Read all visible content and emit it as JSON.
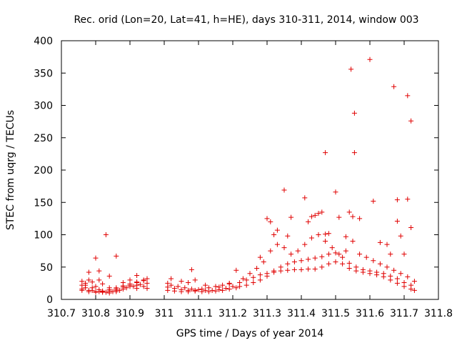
{
  "chart_data": {
    "type": "scatter",
    "title": "Rec. orid (Lon=20, Lat=41, h=HE), days 310-311, 2014, window 003",
    "xlabel": "GPS time / Days of year 2014",
    "ylabel": "STEC from uqrg / TECUs",
    "xlim": [
      310.7,
      311.8
    ],
    "ylim": [
      0,
      400
    ],
    "xticks": [
      "310.7",
      "310.8",
      "310.9",
      "311",
      "311.1",
      "311.2",
      "311.3",
      "311.4",
      "311.5",
      "311.6",
      "311.7",
      "311.8"
    ],
    "yticks": [
      "0",
      "50",
      "100",
      "150",
      "200",
      "250",
      "300",
      "350",
      "400"
    ],
    "marker": "+",
    "color": "#e00000",
    "series": [
      {
        "name": "STEC",
        "points": [
          [
            310.76,
            28
          ],
          [
            310.77,
            22
          ],
          [
            310.79,
            18
          ],
          [
            310.81,
            15
          ],
          [
            310.82,
            12
          ],
          [
            310.84,
            10
          ],
          [
            310.86,
            12
          ],
          [
            310.88,
            16
          ],
          [
            310.9,
            20
          ],
          [
            310.92,
            22
          ],
          [
            310.94,
            20
          ],
          [
            310.95,
            17
          ],
          [
            310.76,
            22
          ],
          [
            310.77,
            18
          ],
          [
            310.79,
            14
          ],
          [
            310.81,
            12
          ],
          [
            310.83,
            11
          ],
          [
            310.85,
            12
          ],
          [
            310.87,
            14
          ],
          [
            310.89,
            18
          ],
          [
            310.91,
            20
          ],
          [
            310.93,
            23
          ],
          [
            310.95,
            25
          ],
          [
            310.76,
            16
          ],
          [
            310.78,
            14
          ],
          [
            310.8,
            12
          ],
          [
            310.82,
            11
          ],
          [
            310.84,
            13
          ],
          [
            310.86,
            16
          ],
          [
            310.88,
            19
          ],
          [
            310.9,
            22
          ],
          [
            310.92,
            26
          ],
          [
            310.94,
            30
          ],
          [
            310.95,
            32
          ],
          [
            310.76,
            14
          ],
          [
            310.78,
            12
          ],
          [
            310.8,
            11
          ],
          [
            310.82,
            13
          ],
          [
            310.84,
            15
          ],
          [
            310.86,
            18
          ],
          [
            310.88,
            21
          ],
          [
            310.9,
            24
          ],
          [
            310.92,
            27
          ],
          [
            310.94,
            29
          ],
          [
            310.77,
            25
          ],
          [
            310.78,
            30
          ],
          [
            310.79,
            27
          ],
          [
            310.8,
            20
          ],
          [
            310.81,
            30
          ],
          [
            310.82,
            24
          ],
          [
            310.84,
            18
          ],
          [
            310.86,
            14
          ],
          [
            310.88,
            26
          ],
          [
            310.9,
            30
          ],
          [
            310.92,
            17
          ],
          [
            310.78,
            42
          ],
          [
            310.8,
            64
          ],
          [
            310.81,
            44
          ],
          [
            310.83,
            100
          ],
          [
            310.84,
            36
          ],
          [
            310.86,
            67
          ],
          [
            310.92,
            37
          ],
          [
            311.01,
            25
          ],
          [
            311.02,
            22
          ],
          [
            311.04,
            20
          ],
          [
            311.06,
            18
          ],
          [
            311.08,
            16
          ],
          [
            311.1,
            15
          ],
          [
            311.12,
            14
          ],
          [
            311.14,
            14
          ],
          [
            311.16,
            15
          ],
          [
            311.18,
            17
          ],
          [
            311.2,
            20
          ],
          [
            311.01,
            19
          ],
          [
            311.03,
            17
          ],
          [
            311.05,
            15
          ],
          [
            311.07,
            14
          ],
          [
            311.09,
            13
          ],
          [
            311.11,
            12
          ],
          [
            311.13,
            12
          ],
          [
            311.15,
            13
          ],
          [
            311.17,
            14
          ],
          [
            311.19,
            16
          ],
          [
            311.21,
            18
          ],
          [
            311.01,
            14
          ],
          [
            311.03,
            13
          ],
          [
            311.05,
            12
          ],
          [
            311.07,
            12
          ],
          [
            311.09,
            14
          ],
          [
            311.11,
            16
          ],
          [
            311.13,
            18
          ],
          [
            311.15,
            20
          ],
          [
            311.17,
            22
          ],
          [
            311.19,
            24
          ],
          [
            311.02,
            32
          ],
          [
            311.05,
            28
          ],
          [
            311.07,
            26
          ],
          [
            311.09,
            30
          ],
          [
            311.12,
            22
          ],
          [
            311.16,
            19
          ],
          [
            311.19,
            25
          ],
          [
            311.08,
            46
          ],
          [
            311.21,
            45
          ],
          [
            311.22,
            26
          ],
          [
            311.24,
            30
          ],
          [
            311.26,
            34
          ],
          [
            311.28,
            38
          ],
          [
            311.3,
            40
          ],
          [
            311.32,
            42
          ],
          [
            311.34,
            44
          ],
          [
            311.36,
            45
          ],
          [
            311.38,
            46
          ],
          [
            311.4,
            46
          ],
          [
            311.42,
            47
          ],
          [
            311.44,
            47
          ],
          [
            311.46,
            50
          ],
          [
            311.48,
            55
          ],
          [
            311.5,
            58
          ],
          [
            311.52,
            55
          ],
          [
            311.54,
            48
          ],
          [
            311.56,
            44
          ],
          [
            311.58,
            42
          ],
          [
            311.6,
            40
          ],
          [
            311.62,
            38
          ],
          [
            311.64,
            35
          ],
          [
            311.66,
            30
          ],
          [
            311.68,
            25
          ],
          [
            311.7,
            20
          ],
          [
            311.72,
            16
          ],
          [
            311.73,
            14
          ],
          [
            311.22,
            20
          ],
          [
            311.24,
            22
          ],
          [
            311.26,
            26
          ],
          [
            311.28,
            30
          ],
          [
            311.3,
            36
          ],
          [
            311.32,
            44
          ],
          [
            311.34,
            50
          ],
          [
            311.36,
            55
          ],
          [
            311.38,
            58
          ],
          [
            311.4,
            60
          ],
          [
            311.42,
            62
          ],
          [
            311.44,
            64
          ],
          [
            311.46,
            66
          ],
          [
            311.48,
            70
          ],
          [
            311.5,
            72
          ],
          [
            311.52,
            65
          ],
          [
            311.54,
            56
          ],
          [
            311.56,
            50
          ],
          [
            311.58,
            46
          ],
          [
            311.6,
            44
          ],
          [
            311.62,
            42
          ],
          [
            311.64,
            40
          ],
          [
            311.66,
            36
          ],
          [
            311.68,
            32
          ],
          [
            311.7,
            26
          ],
          [
            311.72,
            22
          ],
          [
            311.23,
            32
          ],
          [
            311.25,
            40
          ],
          [
            311.27,
            48
          ],
          [
            311.29,
            58
          ],
          [
            311.31,
            75
          ],
          [
            311.33,
            85
          ],
          [
            311.35,
            80
          ],
          [
            311.37,
            70
          ],
          [
            311.39,
            75
          ],
          [
            311.41,
            85
          ],
          [
            311.43,
            95
          ],
          [
            311.45,
            100
          ],
          [
            311.47,
            90
          ],
          [
            311.49,
            80
          ],
          [
            311.51,
            70
          ],
          [
            311.53,
            75
          ],
          [
            311.55,
            90
          ],
          [
            311.57,
            70
          ],
          [
            311.59,
            65
          ],
          [
            311.61,
            60
          ],
          [
            311.63,
            55
          ],
          [
            311.65,
            50
          ],
          [
            311.67,
            45
          ],
          [
            311.69,
            40
          ],
          [
            311.71,
            35
          ],
          [
            311.73,
            28
          ],
          [
            311.28,
            65
          ],
          [
            311.3,
            125
          ],
          [
            311.31,
            120
          ],
          [
            311.32,
            100
          ],
          [
            311.33,
            107
          ],
          [
            311.35,
            169
          ],
          [
            311.36,
            98
          ],
          [
            311.37,
            127
          ],
          [
            311.41,
            157
          ],
          [
            311.42,
            120
          ],
          [
            311.43,
            128
          ],
          [
            311.44,
            130
          ],
          [
            311.45,
            133
          ],
          [
            311.46,
            135
          ],
          [
            311.47,
            101
          ],
          [
            311.48,
            102
          ],
          [
            311.47,
            227
          ],
          [
            311.5,
            166
          ],
          [
            311.51,
            127
          ],
          [
            311.53,
            97
          ],
          [
            311.54,
            135
          ],
          [
            311.545,
            356
          ],
          [
            311.55,
            128
          ],
          [
            311.555,
            288
          ],
          [
            311.555,
            227
          ],
          [
            311.57,
            125
          ],
          [
            311.6,
            371
          ],
          [
            311.61,
            152
          ],
          [
            311.67,
            329
          ],
          [
            311.68,
            154
          ],
          [
            311.68,
            121
          ],
          [
            311.69,
            98
          ],
          [
            311.71,
            315
          ],
          [
            311.71,
            155
          ],
          [
            311.72,
            276
          ],
          [
            311.72,
            111
          ],
          [
            311.65,
            85
          ],
          [
            311.66,
            70
          ],
          [
            311.7,
            70
          ],
          [
            311.63,
            88
          ]
        ]
      }
    ]
  }
}
